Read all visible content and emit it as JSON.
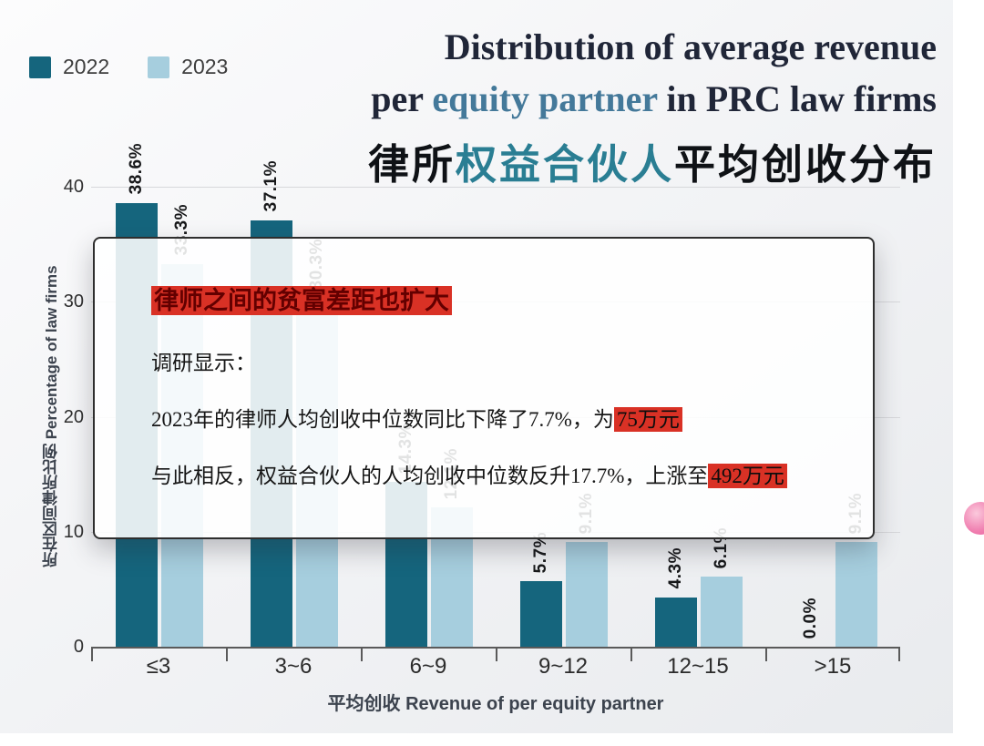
{
  "legend": {
    "items": [
      {
        "label": "2022",
        "color": "#15657d"
      },
      {
        "label": "2023",
        "color": "#a6cede"
      }
    ]
  },
  "title": {
    "line1": "Distribution of average revenue",
    "line2_pre": "per ",
    "line2_highlight": "equity partner",
    "line2_post": " in PRC law firms",
    "cn_pre": "律所",
    "cn_highlight": "权益合伙人",
    "cn_post": "平均创收分布"
  },
  "chart_data": {
    "type": "bar",
    "categories": [
      "≤3",
      "3~6",
      "6~9",
      "9~12",
      "12~15",
      ">15"
    ],
    "series": [
      {
        "name": "2022",
        "color": "#15657d",
        "values": [
          38.6,
          37.1,
          14.3,
          5.7,
          4.3,
          0.0
        ]
      },
      {
        "name": "2023",
        "color": "#a6cede",
        "values": [
          33.3,
          30.3,
          12.1,
          9.1,
          6.1,
          9.1
        ]
      }
    ],
    "title": "Distribution of average revenue per equity partner in PRC law firms 律所权益合伙人平均创收分布",
    "xlabel": "平均创收 Revenue of per equity partner",
    "ylabel": "所在区间律所比例 Percentage of law firms",
    "ylim": [
      0,
      40
    ],
    "yticks": [
      0,
      10,
      20,
      30,
      40
    ],
    "grid": true,
    "legend_position": "top-left",
    "value_label_format": "0.0%"
  },
  "popup": {
    "title": "律师之间的贫富差距也扩大",
    "line1": "调研显示：",
    "line2_pre": "2023年的律师人均创收中位数同比下降了7.7%，为",
    "line2_highlight": "75万元",
    "line3_pre": "与此相反，权益合伙人的人均创收中位数反升17.7%，上涨至",
    "line3_highlight": "492万元"
  }
}
